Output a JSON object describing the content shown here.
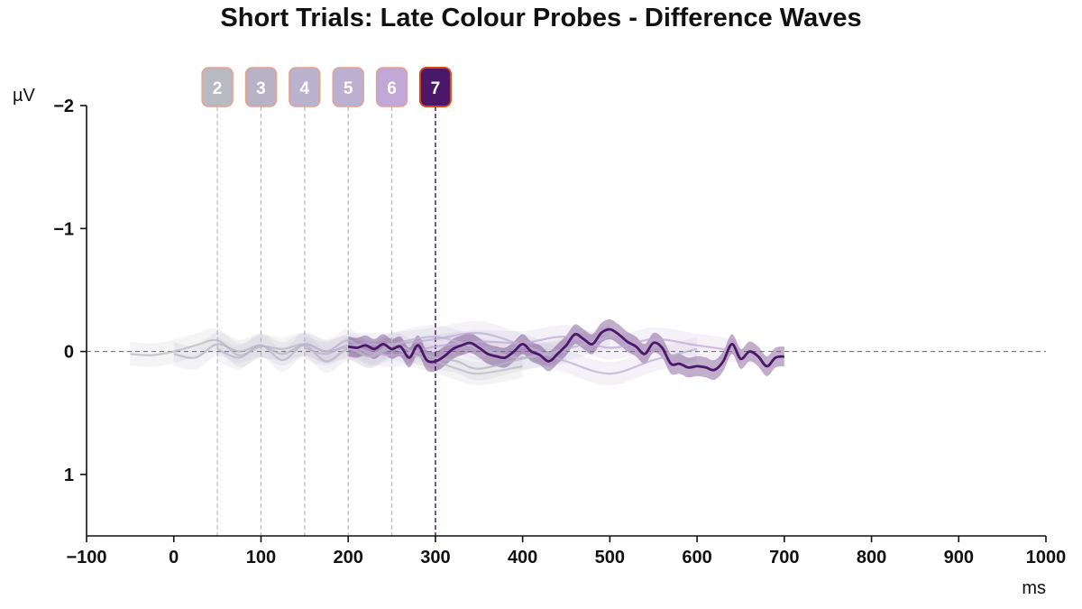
{
  "chart_data": {
    "type": "line",
    "title": "Short Trials: Late Colour Probes - Difference Waves",
    "xlabel": "ms",
    "ylabel": "µV",
    "xlim": [
      -100,
      1000
    ],
    "ylim": [
      1.5,
      -2
    ],
    "y_inverted": true,
    "x_ticks": [
      -100,
      0,
      100,
      200,
      300,
      400,
      500,
      600,
      700,
      800,
      900,
      1000
    ],
    "x_tick_labels": [
      "−100",
      "0",
      "100",
      "200",
      "300",
      "400",
      "500",
      "600",
      "700",
      "800",
      "900",
      "1000"
    ],
    "y_ticks": [
      -2,
      -1,
      0,
      1
    ],
    "y_tick_labels": [
      "−2",
      "−1",
      "0",
      "1"
    ],
    "grid": false,
    "zero_line": true,
    "series": [
      {
        "marker": "2",
        "onset": 50,
        "color": "#b9b9c2",
        "highlighted": false,
        "x": [
          -50,
          -25,
          0,
          25,
          50,
          75,
          100,
          125,
          150,
          175,
          200,
          225,
          250,
          275,
          300,
          325,
          350,
          400
        ],
        "y": [
          0.02,
          0.03,
          0.0,
          -0.05,
          -0.09,
          0.03,
          -0.04,
          -0.02,
          -0.06,
          0.0,
          -0.03,
          0.04,
          -0.02,
          0.03,
          0.08,
          0.14,
          0.18,
          0.12
        ]
      },
      {
        "marker": "3",
        "onset": 100,
        "color": "#b7b3c4",
        "highlighted": false,
        "x": [
          0,
          25,
          50,
          75,
          100,
          125,
          150,
          175,
          200,
          225,
          250,
          275,
          300,
          325,
          350,
          400,
          450
        ],
        "y": [
          0.02,
          0.05,
          -0.06,
          0.0,
          -0.05,
          0.02,
          -0.05,
          0.08,
          -0.02,
          0.04,
          -0.06,
          0.0,
          0.05,
          0.08,
          0.14,
          0.06,
          0.0
        ]
      },
      {
        "marker": "4",
        "onset": 150,
        "color": "#bab3cd",
        "highlighted": false,
        "x": [
          50,
          75,
          100,
          125,
          150,
          175,
          200,
          225,
          250,
          275,
          300,
          325,
          350,
          375,
          400,
          450,
          500
        ],
        "y": [
          -0.02,
          0.05,
          -0.05,
          0.07,
          -0.06,
          0.0,
          -0.09,
          0.02,
          -0.05,
          -0.1,
          -0.12,
          -0.08,
          -0.02,
          0.02,
          0.05,
          -0.02,
          -0.12
        ]
      },
      {
        "marker": "5",
        "onset": 200,
        "color": "#bcb0d1",
        "highlighted": false,
        "x": [
          150,
          175,
          200,
          250,
          300,
          350,
          400,
          450,
          500,
          550,
          600
        ],
        "y": [
          -0.03,
          0.02,
          -0.05,
          -0.06,
          -0.1,
          -0.15,
          -0.05,
          0.08,
          0.18,
          0.07,
          -0.02
        ]
      },
      {
        "marker": "6",
        "onset": 250,
        "color": "#c1a8d6",
        "highlighted": false,
        "x": [
          200,
          250,
          300,
          350,
          400,
          450,
          500,
          550,
          600,
          650
        ],
        "y": [
          -0.04,
          0.03,
          -0.04,
          -0.08,
          -0.07,
          -0.12,
          -0.03,
          -0.1,
          -0.05,
          0.0
        ]
      },
      {
        "marker": "7",
        "onset": 300,
        "color": "#4a1769",
        "highlighted": true,
        "x": [
          200,
          210,
          220,
          230,
          240,
          250,
          260,
          270,
          280,
          290,
          300,
          310,
          320,
          330,
          340,
          350,
          360,
          370,
          380,
          390,
          400,
          410,
          420,
          430,
          440,
          450,
          460,
          470,
          480,
          490,
          500,
          510,
          520,
          530,
          540,
          550,
          560,
          570,
          580,
          590,
          600,
          610,
          620,
          630,
          640,
          650,
          660,
          670,
          680,
          690,
          700
        ],
        "y": [
          -0.04,
          -0.03,
          -0.05,
          -0.02,
          -0.06,
          -0.02,
          -0.04,
          0.05,
          -0.05,
          0.07,
          0.08,
          0.04,
          -0.02,
          -0.05,
          -0.07,
          -0.03,
          0.02,
          0.04,
          0.05,
          0.0,
          -0.06,
          0.0,
          0.03,
          0.08,
          0.02,
          -0.05,
          -0.14,
          -0.1,
          -0.06,
          -0.15,
          -0.18,
          -0.14,
          -0.08,
          -0.04,
          0.02,
          -0.07,
          -0.03,
          0.1,
          0.1,
          0.13,
          0.12,
          0.13,
          0.15,
          0.08,
          -0.06,
          0.06,
          0.0,
          0.04,
          0.12,
          0.05,
          0.04
        ]
      }
    ]
  }
}
